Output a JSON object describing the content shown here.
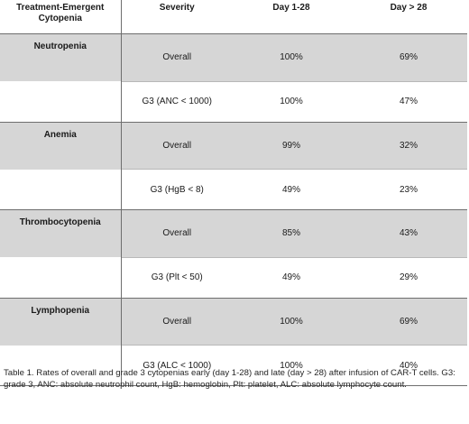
{
  "table": {
    "headers": {
      "condition": "Treatment-Emergent Cytopenia",
      "severity": "Severity",
      "early": "Day 1-28",
      "late": "Day > 28"
    },
    "groups": [
      {
        "name": "Neutropenia",
        "rows": [
          {
            "severity": "Overall",
            "early": "100%",
            "late": "69%"
          },
          {
            "severity": "G3  (ANC < 1000)",
            "early": "100%",
            "late": "47%"
          }
        ]
      },
      {
        "name": "Anemia",
        "rows": [
          {
            "severity": "Overall",
            "early": "99%",
            "late": "32%"
          },
          {
            "severity": "G3  (HgB < 8)",
            "early": "49%",
            "late": "23%"
          }
        ]
      },
      {
        "name": "Thrombocytopenia",
        "rows": [
          {
            "severity": "Overall",
            "early": "85%",
            "late": "43%"
          },
          {
            "severity": "G3  (Plt < 50)",
            "early": "49%",
            "late": "29%"
          }
        ]
      },
      {
        "name": "Lymphopenia",
        "rows": [
          {
            "severity": "Overall",
            "early": "100%",
            "late": "69%"
          },
          {
            "severity": "G3  (ALC < 1000)",
            "early": "100%",
            "late": "40%"
          }
        ]
      }
    ]
  },
  "caption": "Table 1.  Rates of overall and grade 3 cytopenias early (day 1-28) and late (day > 28) after infusion of CAR-T cells.  G3: grade 3, ANC: absolute neutrophil count, HgB: hemoglobin, Plt: platelet, ALC: absolute lymphocyte count.",
  "colors": {
    "shaded_row": "#d6d6d6",
    "border": "#6e6e6e"
  }
}
